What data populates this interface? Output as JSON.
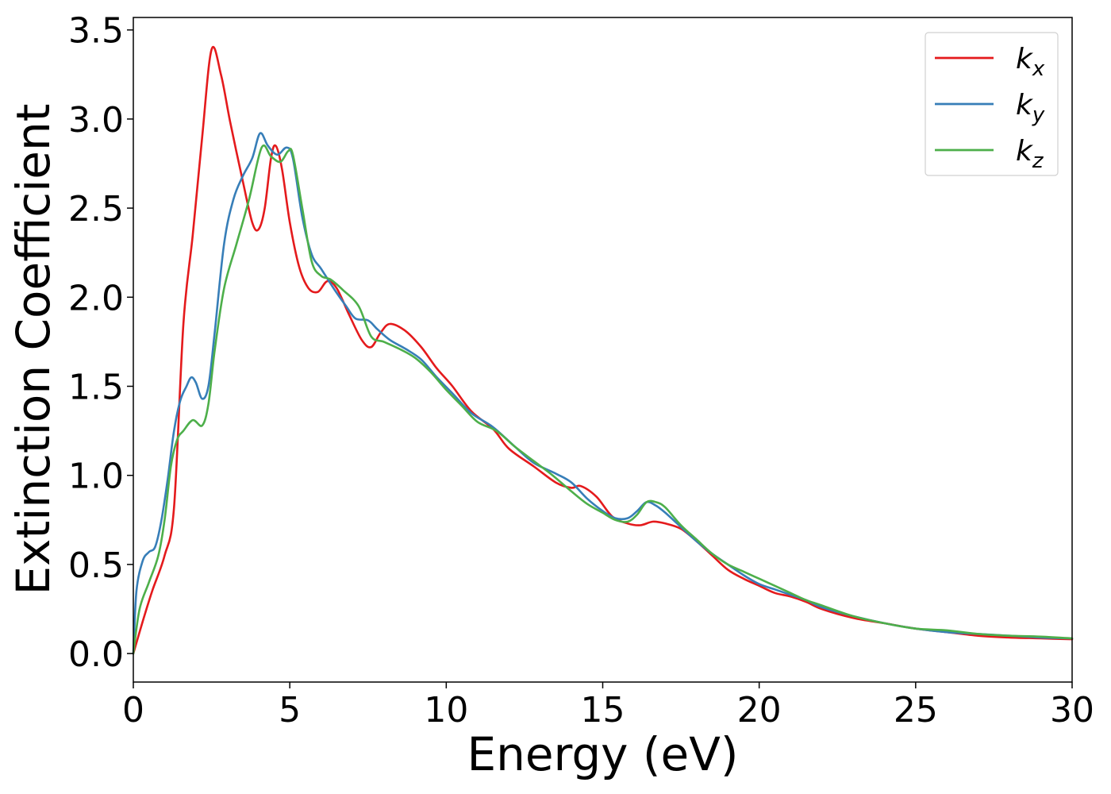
{
  "chart_data": {
    "type": "line",
    "xlabel": "Energy (eV)",
    "ylabel": "Extinction Coefficient",
    "xlim": [
      0,
      30
    ],
    "ylim": [
      -0.16,
      3.57
    ],
    "x_ticks": [
      0,
      5,
      10,
      15,
      20,
      25,
      30
    ],
    "y_ticks": [
      0.0,
      0.5,
      1.0,
      1.5,
      2.0,
      2.5,
      3.0,
      3.5
    ],
    "x_tick_labels": [
      "0",
      "5",
      "10",
      "15",
      "20",
      "25",
      "30"
    ],
    "y_tick_labels": [
      "0.0",
      "0.5",
      "1.0",
      "1.5",
      "2.0",
      "2.5",
      "3.0",
      "3.5"
    ],
    "grid": false,
    "legend_position": "top-right",
    "series": [
      {
        "name": "k",
        "subscript": "x",
        "color": "#e41a1c",
        "points": [
          [
            0,
            0
          ],
          [
            0.3,
            0.18
          ],
          [
            0.6,
            0.35
          ],
          [
            1.0,
            0.55
          ],
          [
            1.3,
            0.82
          ],
          [
            1.6,
            1.85
          ],
          [
            1.9,
            2.35
          ],
          [
            2.2,
            2.9
          ],
          [
            2.5,
            3.39
          ],
          [
            2.8,
            3.25
          ],
          [
            3.1,
            2.98
          ],
          [
            3.5,
            2.65
          ],
          [
            3.8,
            2.42
          ],
          [
            4.0,
            2.38
          ],
          [
            4.2,
            2.5
          ],
          [
            4.4,
            2.78
          ],
          [
            4.55,
            2.85
          ],
          [
            4.75,
            2.72
          ],
          [
            5.0,
            2.42
          ],
          [
            5.3,
            2.17
          ],
          [
            5.6,
            2.05
          ],
          [
            5.9,
            2.03
          ],
          [
            6.2,
            2.09
          ],
          [
            6.5,
            2.05
          ],
          [
            6.9,
            1.9
          ],
          [
            7.3,
            1.76
          ],
          [
            7.6,
            1.72
          ],
          [
            7.9,
            1.8
          ],
          [
            8.2,
            1.85
          ],
          [
            8.7,
            1.81
          ],
          [
            9.2,
            1.72
          ],
          [
            9.7,
            1.6
          ],
          [
            10.2,
            1.5
          ],
          [
            10.8,
            1.36
          ],
          [
            11.5,
            1.26
          ],
          [
            12.0,
            1.15
          ],
          [
            12.8,
            1.05
          ],
          [
            13.5,
            0.96
          ],
          [
            14.0,
            0.93
          ],
          [
            14.3,
            0.94
          ],
          [
            14.8,
            0.88
          ],
          [
            15.3,
            0.77
          ],
          [
            15.8,
            0.73
          ],
          [
            16.2,
            0.72
          ],
          [
            16.6,
            0.74
          ],
          [
            17.0,
            0.73
          ],
          [
            17.5,
            0.7
          ],
          [
            18.0,
            0.63
          ],
          [
            18.5,
            0.55
          ],
          [
            19.0,
            0.47
          ],
          [
            19.5,
            0.42
          ],
          [
            20.0,
            0.38
          ],
          [
            20.5,
            0.34
          ],
          [
            21.0,
            0.32
          ],
          [
            21.5,
            0.29
          ],
          [
            22.0,
            0.25
          ],
          [
            23.0,
            0.2
          ],
          [
            24.0,
            0.17
          ],
          [
            25.0,
            0.14
          ],
          [
            26.0,
            0.12
          ],
          [
            27.0,
            0.1
          ],
          [
            28.0,
            0.09
          ],
          [
            29.0,
            0.085
          ],
          [
            30.0,
            0.08
          ]
        ]
      },
      {
        "name": "k",
        "subscript": "y",
        "color": "#377eb8",
        "points": [
          [
            0,
            0
          ],
          [
            0.1,
            0.35
          ],
          [
            0.3,
            0.52
          ],
          [
            0.5,
            0.57
          ],
          [
            0.7,
            0.6
          ],
          [
            0.9,
            0.75
          ],
          [
            1.1,
            0.98
          ],
          [
            1.3,
            1.25
          ],
          [
            1.5,
            1.42
          ],
          [
            1.7,
            1.5
          ],
          [
            1.85,
            1.55
          ],
          [
            2.0,
            1.52
          ],
          [
            2.2,
            1.43
          ],
          [
            2.4,
            1.5
          ],
          [
            2.6,
            1.8
          ],
          [
            2.9,
            2.3
          ],
          [
            3.2,
            2.55
          ],
          [
            3.5,
            2.68
          ],
          [
            3.8,
            2.78
          ],
          [
            4.05,
            2.92
          ],
          [
            4.3,
            2.85
          ],
          [
            4.6,
            2.8
          ],
          [
            4.9,
            2.84
          ],
          [
            5.1,
            2.78
          ],
          [
            5.4,
            2.45
          ],
          [
            5.7,
            2.24
          ],
          [
            6.0,
            2.16
          ],
          [
            6.4,
            2.05
          ],
          [
            6.8,
            1.95
          ],
          [
            7.1,
            1.88
          ],
          [
            7.5,
            1.87
          ],
          [
            7.8,
            1.82
          ],
          [
            8.2,
            1.76
          ],
          [
            8.7,
            1.71
          ],
          [
            9.2,
            1.65
          ],
          [
            9.7,
            1.55
          ],
          [
            10.2,
            1.46
          ],
          [
            10.8,
            1.35
          ],
          [
            11.5,
            1.27
          ],
          [
            12.2,
            1.16
          ],
          [
            12.8,
            1.07
          ],
          [
            13.5,
            1.01
          ],
          [
            14.0,
            0.96
          ],
          [
            14.5,
            0.87
          ],
          [
            15.0,
            0.8
          ],
          [
            15.4,
            0.76
          ],
          [
            15.8,
            0.76
          ],
          [
            16.1,
            0.8
          ],
          [
            16.4,
            0.85
          ],
          [
            16.7,
            0.83
          ],
          [
            17.0,
            0.79
          ],
          [
            17.5,
            0.71
          ],
          [
            18.0,
            0.63
          ],
          [
            18.5,
            0.56
          ],
          [
            19.0,
            0.5
          ],
          [
            19.5,
            0.44
          ],
          [
            20.0,
            0.39
          ],
          [
            20.5,
            0.36
          ],
          [
            21.0,
            0.33
          ],
          [
            21.5,
            0.3
          ],
          [
            22.0,
            0.26
          ],
          [
            23.0,
            0.21
          ],
          [
            24.0,
            0.17
          ],
          [
            25.0,
            0.14
          ],
          [
            26.0,
            0.12
          ],
          [
            27.0,
            0.11
          ],
          [
            28.0,
            0.1
          ],
          [
            29.0,
            0.09
          ],
          [
            30.0,
            0.085
          ]
        ]
      },
      {
        "name": "k",
        "subscript": "z",
        "color": "#4daf4a",
        "points": [
          [
            0,
            0
          ],
          [
            0.2,
            0.25
          ],
          [
            0.5,
            0.4
          ],
          [
            0.8,
            0.55
          ],
          [
            1.0,
            0.75
          ],
          [
            1.2,
            1.05
          ],
          [
            1.4,
            1.2
          ],
          [
            1.6,
            1.25
          ],
          [
            1.9,
            1.31
          ],
          [
            2.2,
            1.28
          ],
          [
            2.4,
            1.4
          ],
          [
            2.6,
            1.7
          ],
          [
            2.9,
            2.05
          ],
          [
            3.3,
            2.3
          ],
          [
            3.7,
            2.55
          ],
          [
            4.1,
            2.84
          ],
          [
            4.4,
            2.79
          ],
          [
            4.7,
            2.76
          ],
          [
            4.95,
            2.82
          ],
          [
            5.1,
            2.8
          ],
          [
            5.4,
            2.5
          ],
          [
            5.7,
            2.2
          ],
          [
            6.0,
            2.12
          ],
          [
            6.3,
            2.1
          ],
          [
            6.7,
            2.04
          ],
          [
            7.2,
            1.95
          ],
          [
            7.6,
            1.78
          ],
          [
            8.0,
            1.75
          ],
          [
            8.5,
            1.71
          ],
          [
            9.0,
            1.66
          ],
          [
            9.5,
            1.58
          ],
          [
            10.0,
            1.48
          ],
          [
            10.5,
            1.39
          ],
          [
            11.0,
            1.3
          ],
          [
            11.6,
            1.25
          ],
          [
            12.2,
            1.16
          ],
          [
            12.8,
            1.08
          ],
          [
            13.4,
            1.0
          ],
          [
            14.0,
            0.91
          ],
          [
            14.5,
            0.84
          ],
          [
            15.0,
            0.79
          ],
          [
            15.4,
            0.75
          ],
          [
            15.8,
            0.74
          ],
          [
            16.1,
            0.78
          ],
          [
            16.4,
            0.85
          ],
          [
            16.7,
            0.85
          ],
          [
            17.0,
            0.82
          ],
          [
            17.5,
            0.72
          ],
          [
            18.0,
            0.64
          ],
          [
            18.5,
            0.56
          ],
          [
            19.0,
            0.5
          ],
          [
            19.5,
            0.46
          ],
          [
            20.0,
            0.42
          ],
          [
            20.5,
            0.38
          ],
          [
            21.0,
            0.34
          ],
          [
            21.5,
            0.3
          ],
          [
            22.0,
            0.27
          ],
          [
            23.0,
            0.21
          ],
          [
            24.0,
            0.17
          ],
          [
            25.0,
            0.14
          ],
          [
            26.0,
            0.13
          ],
          [
            27.0,
            0.11
          ],
          [
            28.0,
            0.1
          ],
          [
            29.0,
            0.095
          ],
          [
            30.0,
            0.085
          ]
        ]
      }
    ]
  }
}
